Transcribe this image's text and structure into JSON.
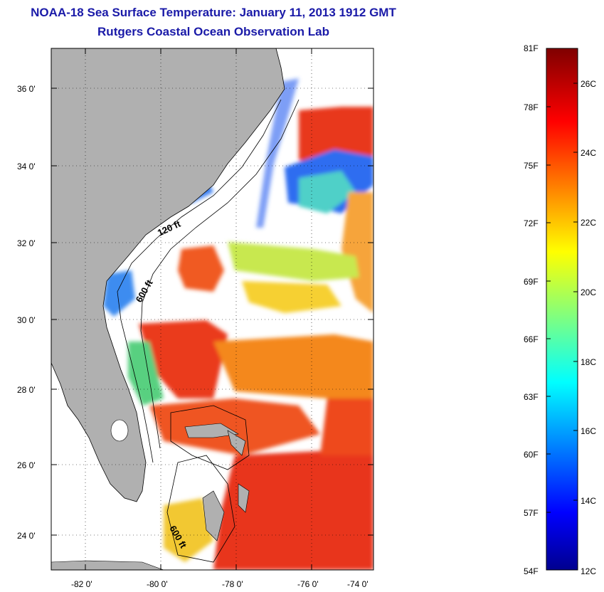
{
  "header": {
    "title": "NOAA-18 Sea Surface Temperature:  January 11, 2013 1912 GMT",
    "subtitle": "Rutgers Coastal Ocean Observation Lab"
  },
  "map": {
    "lat_ticks": [
      "24 0'",
      "26 0'",
      "28 0'",
      "30 0'",
      "32 0'",
      "34 0'",
      "36 0'"
    ],
    "lon_ticks": [
      "-82 0'",
      "-80 0'",
      "-78 0'",
      "-76 0'",
      "-74 0'"
    ],
    "contour_labels": [
      "120 ft",
      "600 ft",
      "600 ft"
    ],
    "land_color": "#b0b0b0",
    "cloud_color": "#ffffff"
  },
  "colorbar": {
    "fahrenheit_labels": [
      "81F",
      "78F",
      "75F",
      "72F",
      "69F",
      "66F",
      "63F",
      "60F",
      "57F",
      "54F"
    ],
    "celsius_labels": [
      "26C",
      "24C",
      "22C",
      "20C",
      "18C",
      "16C",
      "14C",
      "12C"
    ],
    "colormap": "jet",
    "range_c": [
      12,
      27.2
    ]
  }
}
